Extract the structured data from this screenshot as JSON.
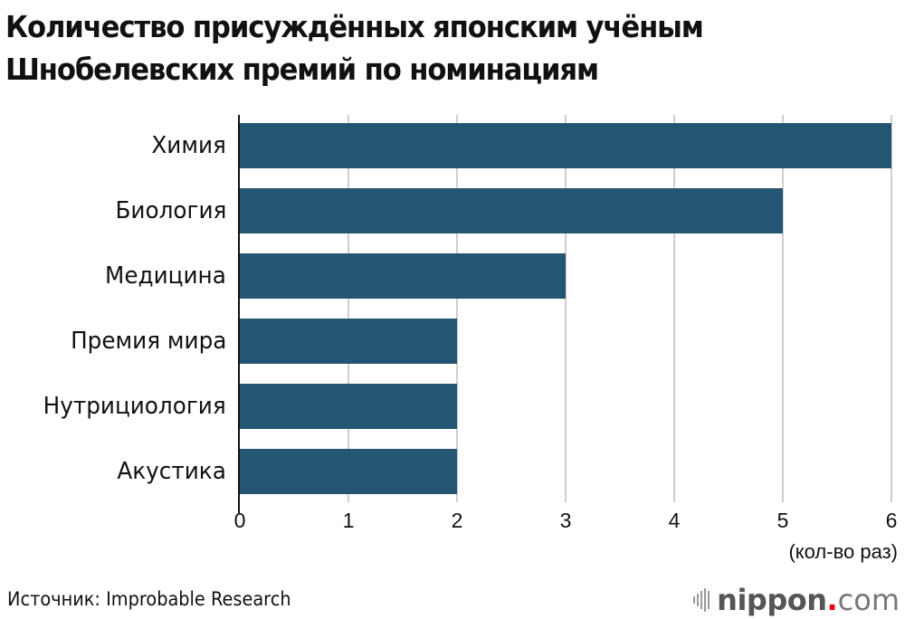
{
  "title_lines": [
    "Количество присуждённых японским учёным",
    "Шнобелевских премий по номинациям"
  ],
  "source": "Источник: Improbable Research",
  "logo": {
    "brand": "nippon",
    "dot": ".",
    "suffix": "com",
    "icon": "sound-bars-icon"
  },
  "colors": {
    "bar": "#245674",
    "grid": "#cfcfcf",
    "logo_dot": "#e60012"
  },
  "chart_data": {
    "type": "bar",
    "orientation": "horizontal",
    "title": "Количество присуждённых японским учёным Шнобелевских премий по номинациям",
    "categories": [
      "Химия",
      "Биология",
      "Медицина",
      "Премия мира",
      "Нутрициология",
      "Акустика"
    ],
    "values": [
      6,
      5,
      3,
      2,
      2,
      2
    ],
    "xlabel": "(кол-во раз)",
    "ylabel": "",
    "xlim": [
      0,
      6
    ],
    "xticks": [
      "0",
      "1",
      "2",
      "3",
      "4",
      "5",
      "6"
    ],
    "grid": true,
    "legend": null
  }
}
